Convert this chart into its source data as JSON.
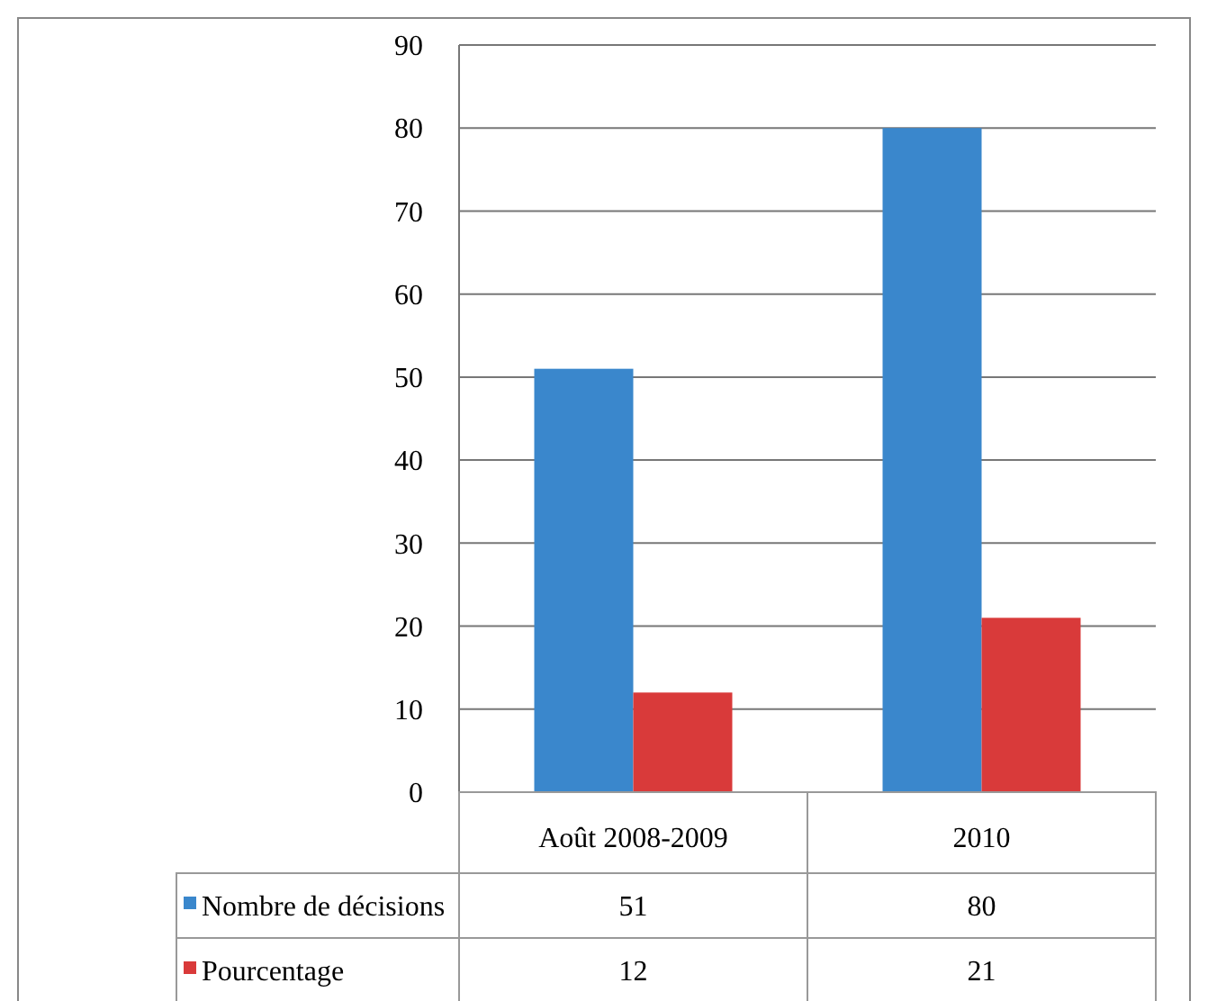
{
  "chart_data": {
    "type": "bar",
    "categories": [
      "Août 2008-2009",
      "2010"
    ],
    "series": [
      {
        "name": "Nombre de décisions",
        "color": "#3a87cc",
        "values": [
          51,
          80
        ]
      },
      {
        "name": "Pourcentage",
        "color": "#d93a3a",
        "values": [
          12,
          21
        ]
      }
    ],
    "ylim": [
      0,
      90
    ],
    "yticks": [
      0,
      10,
      20,
      30,
      40,
      50,
      60,
      70,
      80,
      90
    ],
    "grid": "y",
    "legend": "bottom left",
    "data_labels": true
  }
}
